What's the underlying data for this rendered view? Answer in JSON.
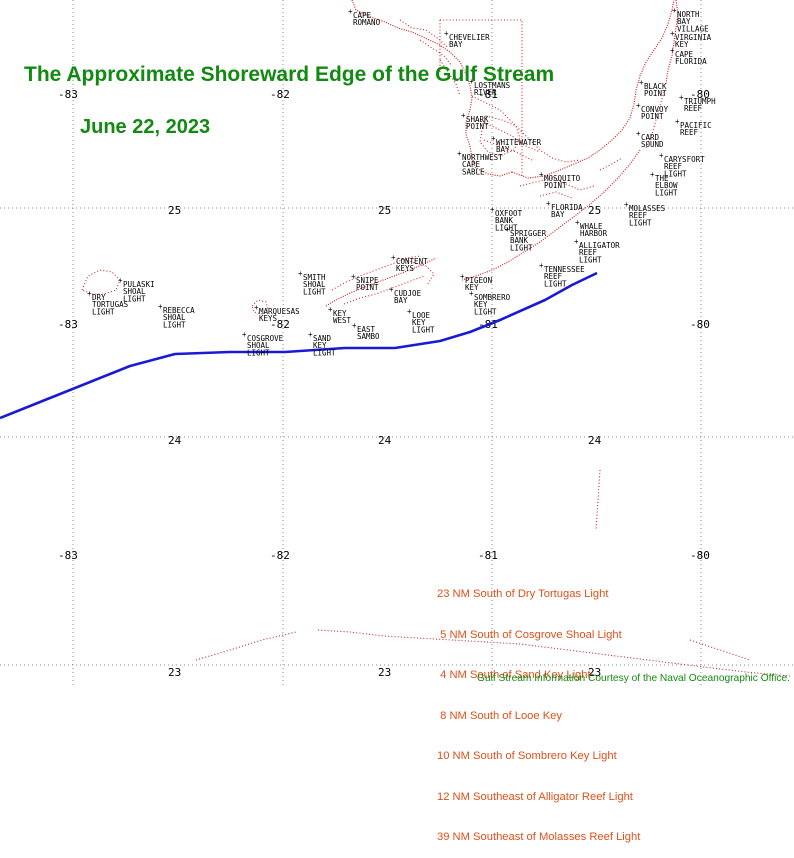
{
  "title": "The Approximate Shoreward Edge of the Gulf Stream",
  "date": "June 22, 2023",
  "credit": "Gulf Stream Information Courtesy of the Naval Oceanographic Office.",
  "distances": [
    "23 NM South of Dry Tortugas Light",
    " 5 NM South of Cosgrove Shoal Light",
    " 4 NM South of Sand Key Light",
    " 8 NM South of Looe Key",
    "10 NM South of Sombrero Key Light",
    "12 NM Southeast of Alligator Reef Light",
    "39 NM Southeast of Molasses Reef Light"
  ],
  "coord_labels": {
    "lon_row1": [
      "-83",
      "-82",
      "-81",
      "-80"
    ],
    "lat_row1": [
      "25",
      "25",
      "25"
    ],
    "lon_row2": [
      "-83",
      "-82",
      "-81",
      "-80"
    ],
    "lat_row2": [
      "24",
      "24",
      "24"
    ],
    "lon_row3": [
      "-83",
      "-82",
      "-81",
      "-80"
    ],
    "lat_row3": [
      "23",
      "23",
      "23"
    ]
  },
  "places": [
    {
      "id": "cape-romano",
      "lines": [
        "CAPE",
        "ROMANO"
      ]
    },
    {
      "id": "chevelier-bay",
      "lines": [
        "CHEVELIER",
        "BAY"
      ]
    },
    {
      "id": "lostmans-river",
      "lines": [
        "LOSTMANS",
        "RIVER"
      ]
    },
    {
      "id": "shark-point",
      "lines": [
        "SHARK",
        "POINT"
      ]
    },
    {
      "id": "whitewater-bay",
      "lines": [
        "WHITEWATER",
        "BAY"
      ]
    },
    {
      "id": "northwest-cape-sable",
      "lines": [
        "NORTHWEST",
        "CAPE",
        "SABLE"
      ]
    },
    {
      "id": "mosquito-point",
      "lines": [
        "MOSQUITO",
        "POINT"
      ]
    },
    {
      "id": "north-bay-village",
      "lines": [
        "NORTH",
        "BAY",
        "VILLAGE"
      ]
    },
    {
      "id": "virginia-key",
      "lines": [
        "VIRGINIA",
        "KEY"
      ]
    },
    {
      "id": "cape-florida",
      "lines": [
        "CAPE",
        "FLORIDA"
      ]
    },
    {
      "id": "black-point",
      "lines": [
        "BLACK",
        "POINT"
      ]
    },
    {
      "id": "triumph-reef",
      "lines": [
        "TRIUMPH",
        "REEF"
      ]
    },
    {
      "id": "convoy-point",
      "lines": [
        "CONVOY",
        "POINT"
      ]
    },
    {
      "id": "pacific-reef",
      "lines": [
        "PACIFIC",
        "REEF"
      ]
    },
    {
      "id": "card-sound",
      "lines": [
        "CARD",
        "SOUND"
      ]
    },
    {
      "id": "carysfort-reef-light",
      "lines": [
        "CARYSFORT",
        "REEF",
        "LIGHT"
      ]
    },
    {
      "id": "the-elbow-light",
      "lines": [
        "THE",
        "ELBOW",
        "LIGHT"
      ]
    },
    {
      "id": "florida-bay",
      "lines": [
        "FLORIDA",
        "BAY"
      ]
    },
    {
      "id": "molasses-reef-light",
      "lines": [
        "MOLASSES",
        "REEF",
        "LIGHT"
      ]
    },
    {
      "id": "oxfoot-bank-light",
      "lines": [
        "OXFOOT",
        "BANK",
        "LIGHT"
      ]
    },
    {
      "id": "sprigger-bank-light",
      "lines": [
        "SPRIGGER",
        "BANK",
        "LIGHT"
      ]
    },
    {
      "id": "whale-harbor",
      "lines": [
        "WHALE",
        "HARBOR"
      ]
    },
    {
      "id": "alligator-reef-light",
      "lines": [
        "ALLIGATOR",
        "REEF",
        "LIGHT"
      ]
    },
    {
      "id": "tennessee-reef-light",
      "lines": [
        "TENNESSEE",
        "REEF",
        "LIGHT"
      ]
    },
    {
      "id": "content-keys",
      "lines": [
        "CONTENT",
        "KEYS"
      ]
    },
    {
      "id": "pigeon-key",
      "lines": [
        "PIGEON",
        "KEY"
      ]
    },
    {
      "id": "smith-shoal-light",
      "lines": [
        "SMITH",
        "SHOAL",
        "LIGHT"
      ]
    },
    {
      "id": "snipe-point",
      "lines": [
        "SNIPE",
        "POINT"
      ]
    },
    {
      "id": "cudjoe-bay",
      "lines": [
        "CUDJOE",
        "BAY"
      ]
    },
    {
      "id": "sombrero-key-light",
      "lines": [
        "SOMBRERO",
        "KEY",
        "LIGHT"
      ]
    },
    {
      "id": "pulaski-shoal-light",
      "lines": [
        "PULASKI",
        "SHOAL",
        "LIGHT"
      ]
    },
    {
      "id": "dry-tortugas-light",
      "lines": [
        "DRY",
        "TORTUGAS",
        "LIGHT"
      ]
    },
    {
      "id": "rebecca-shoal-light",
      "lines": [
        "REBECCA",
        "SHOAL",
        "LIGHT"
      ]
    },
    {
      "id": "marquesas-keys",
      "lines": [
        "MARQUESAS",
        "KEYS"
      ]
    },
    {
      "id": "key-west",
      "lines": [
        "KEY",
        "WEST"
      ]
    },
    {
      "id": "looe-key-light",
      "lines": [
        "LOOE",
        "KEY",
        "LIGHT"
      ]
    },
    {
      "id": "cosgrove-shoal-light",
      "lines": [
        "COSGROVE",
        "SHOAL",
        "LIGHT"
      ]
    },
    {
      "id": "sand-key-light",
      "lines": [
        "SAND",
        "KEY",
        "LIGHT"
      ]
    },
    {
      "id": "east-sambo",
      "lines": [
        "EAST",
        "SAMBO"
      ]
    }
  ],
  "colors": {
    "gulf_stream": "#1a1ad6",
    "coastline": "#d62020",
    "title": "#128a12",
    "distances": "#e0501a",
    "grid": "#8a8a8a"
  }
}
